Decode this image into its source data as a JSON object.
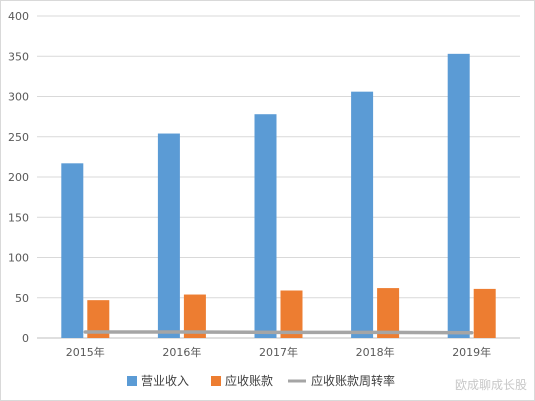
{
  "chart_data": {
    "type": "bar",
    "categories": [
      "2015年",
      "2016年",
      "2017年",
      "2018年",
      "2019年"
    ],
    "series": [
      {
        "name": "营业收入",
        "type": "bar",
        "color": "#5b9bd5",
        "values": [
          217,
          254,
          278,
          306,
          353
        ]
      },
      {
        "name": "应收账款",
        "type": "bar",
        "color": "#ed7d31",
        "values": [
          47,
          54,
          59,
          62,
          61
        ]
      },
      {
        "name": "应收账款周转率",
        "type": "line",
        "color": "#a5a5a5",
        "values": [
          7.5,
          7.5,
          7,
          7,
          6.5
        ]
      }
    ],
    "ylim": [
      0,
      400
    ],
    "yticks": [
      "0",
      "50",
      "100",
      "150",
      "200",
      "250",
      "300",
      "350",
      "400"
    ],
    "grid": true,
    "legend": "bottom",
    "title": "",
    "xlabel": "",
    "ylabel": ""
  },
  "watermark": "欧成聊成长股"
}
